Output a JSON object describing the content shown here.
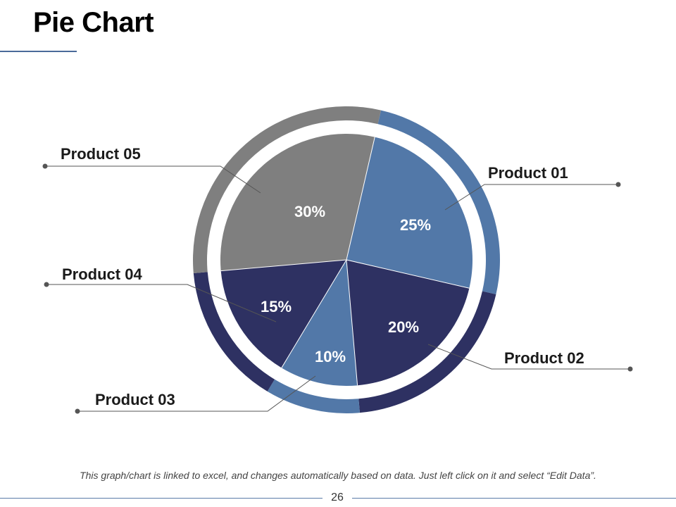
{
  "title": "Pie Chart",
  "footnote": "This graph/chart is linked to excel, and changes automatically based on data. Just left click on it and select “Edit Data”.",
  "page_number": "26",
  "colors": {
    "Product 01": "#5278a8",
    "Product 02": "#2e3162",
    "Product 03": "#5278a8",
    "Product 04": "#2e3162",
    "Product 05": "#7f7f7f"
  },
  "chart_data": {
    "type": "pie",
    "title": "",
    "categories": [
      "Product 01",
      "Product 02",
      "Product 03",
      "Product 04",
      "Product 05"
    ],
    "values": [
      25,
      20,
      10,
      15,
      30
    ],
    "value_labels": [
      "25%",
      "20%",
      "10%",
      "15%",
      "30%"
    ],
    "legend": "callout-labels"
  }
}
